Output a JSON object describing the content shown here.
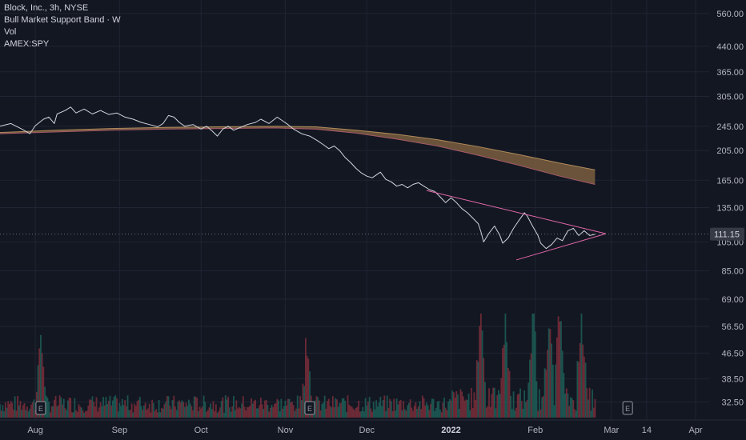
{
  "legend": {
    "symbol": "Block, Inc., 3h, NYSE",
    "indicator": "Bull Market Support Band · W",
    "volume": "Vol",
    "compare": "AMEX:SPY"
  },
  "chart_data": {
    "type": "line",
    "price_scale": "log",
    "ylim": [
      29.5,
      600
    ],
    "y_ticks": [
      "560.00",
      "440.00",
      "365.00",
      "305.00",
      "245.00",
      "205.00",
      "165.00",
      "135.00",
      "105.00",
      "85.00",
      "69.00",
      "56.50",
      "46.50",
      "38.50",
      "32.50"
    ],
    "x_ticks": [
      {
        "label": "Aug",
        "bold": false
      },
      {
        "label": "Sep",
        "bold": false
      },
      {
        "label": "Oct",
        "bold": false
      },
      {
        "label": "Nov",
        "bold": false
      },
      {
        "label": "Dec",
        "bold": false
      },
      {
        "label": "2022",
        "bold": true
      },
      {
        "label": "Feb",
        "bold": false
      },
      {
        "label": "Mar",
        "bold": false
      },
      {
        "label": "14",
        "bold": false
      },
      {
        "label": "Apr",
        "bold": false
      }
    ],
    "x_tick_days": [
      -3,
      28,
      58,
      89,
      119,
      150,
      181,
      209,
      222,
      240
    ],
    "x_range_days": [
      -16,
      245
    ],
    "last_price": "111.15",
    "last_price_value": 111.15,
    "price_series": {
      "name": "Block, Inc.",
      "points": [
        [
          -16,
          245
        ],
        [
          -12,
          250
        ],
        [
          -8,
          240
        ],
        [
          -5,
          232
        ],
        [
          -3,
          246
        ],
        [
          0,
          258
        ],
        [
          2,
          262
        ],
        [
          4,
          250
        ],
        [
          5,
          268
        ],
        [
          8,
          275
        ],
        [
          10,
          282
        ],
        [
          12,
          270
        ],
        [
          15,
          278
        ],
        [
          18,
          268
        ],
        [
          21,
          275
        ],
        [
          24,
          267
        ],
        [
          27,
          270
        ],
        [
          30,
          262
        ],
        [
          33,
          258
        ],
        [
          36,
          252
        ],
        [
          39,
          248
        ],
        [
          42,
          244
        ],
        [
          44,
          250
        ],
        [
          46,
          265
        ],
        [
          48,
          262
        ],
        [
          50,
          252
        ],
        [
          52,
          245
        ],
        [
          55,
          248
        ],
        [
          58,
          240
        ],
        [
          60,
          245
        ],
        [
          62,
          237
        ],
        [
          64,
          228
        ],
        [
          66,
          240
        ],
        [
          68,
          245
        ],
        [
          70,
          238
        ],
        [
          72,
          242
        ],
        [
          75,
          248
        ],
        [
          78,
          252
        ],
        [
          80,
          258
        ],
        [
          83,
          250
        ],
        [
          86,
          262
        ],
        [
          88,
          255
        ],
        [
          90,
          248
        ],
        [
          92,
          240
        ],
        [
          95,
          232
        ],
        [
          98,
          228
        ],
        [
          101,
          220
        ],
        [
          103,
          214
        ],
        [
          105,
          208
        ],
        [
          107,
          212
        ],
        [
          109,
          205
        ],
        [
          111,
          195
        ],
        [
          113,
          188
        ],
        [
          115,
          180
        ],
        [
          117,
          174
        ],
        [
          119,
          170
        ],
        [
          121,
          168
        ],
        [
          124,
          175
        ],
        [
          126,
          166
        ],
        [
          128,
          163
        ],
        [
          130,
          158
        ],
        [
          132,
          160
        ],
        [
          134,
          156
        ],
        [
          136,
          160
        ],
        [
          138,
          162
        ],
        [
          140,
          158
        ],
        [
          142,
          154
        ],
        [
          144,
          152
        ],
        [
          146,
          146
        ],
        [
          148,
          140
        ],
        [
          150,
          145
        ],
        [
          152,
          140
        ],
        [
          154,
          134
        ],
        [
          156,
          130
        ],
        [
          158,
          125
        ],
        [
          160,
          120
        ],
        [
          161,
          113
        ],
        [
          162,
          105
        ],
        [
          164,
          112
        ],
        [
          166,
          118
        ],
        [
          168,
          110
        ],
        [
          169,
          104
        ],
        [
          171,
          108
        ],
        [
          173,
          116
        ],
        [
          175,
          123
        ],
        [
          177,
          130
        ],
        [
          178,
          127
        ],
        [
          180,
          118
        ],
        [
          182,
          110
        ],
        [
          183,
          104
        ],
        [
          185,
          100
        ],
        [
          187,
          103
        ],
        [
          189,
          108
        ],
        [
          191,
          106
        ],
        [
          193,
          114
        ],
        [
          195,
          116
        ],
        [
          197,
          110
        ],
        [
          199,
          114
        ],
        [
          201,
          110
        ],
        [
          203,
          111
        ]
      ]
    },
    "band_series": {
      "name": "Bull Market Support Band · W",
      "upper": [
        [
          -16,
          234
        ],
        [
          5,
          238
        ],
        [
          25,
          241
        ],
        [
          45,
          243
        ],
        [
          65,
          244
        ],
        [
          85,
          245
        ],
        [
          100,
          244
        ],
        [
          115,
          238
        ],
        [
          130,
          231
        ],
        [
          145,
          222
        ],
        [
          160,
          211
        ],
        [
          175,
          199
        ],
        [
          190,
          187
        ],
        [
          203,
          178
        ]
      ],
      "lower": [
        [
          -16,
          232
        ],
        [
          5,
          235
        ],
        [
          25,
          238
        ],
        [
          45,
          240
        ],
        [
          65,
          241
        ],
        [
          85,
          242
        ],
        [
          100,
          240
        ],
        [
          115,
          233
        ],
        [
          130,
          223
        ],
        [
          145,
          212
        ],
        [
          160,
          198
        ],
        [
          175,
          184
        ],
        [
          190,
          170
        ],
        [
          203,
          160
        ]
      ]
    },
    "triangle": {
      "upper_line": [
        [
          141,
          153
        ],
        [
          207,
          111.5
        ]
      ],
      "lower_line": [
        [
          174,
          92
        ],
        [
          207,
          111.5
        ]
      ]
    },
    "earnings_markers": [
      {
        "label": "E",
        "day": -1
      },
      {
        "label": "E",
        "day": 98
      },
      {
        "label": "E",
        "day": 215
      }
    ],
    "volume": {
      "name": "Vol",
      "start_day": -16,
      "end_day": 203,
      "spike_days": [
        -1,
        97,
        161,
        170,
        180,
        186,
        190,
        198
      ]
    },
    "colors": {
      "background": "#131722",
      "grid": "#1f2433",
      "price_line": "#d1d4dc",
      "band_fill": "#7a5e3e",
      "band_edge": "#b08a5a",
      "triangle": "#e066a8",
      "volume_up": "#1d5e57",
      "volume_down": "#7a2e3a",
      "axis_text": "#b2b5be",
      "marker": "#9598a1"
    }
  }
}
